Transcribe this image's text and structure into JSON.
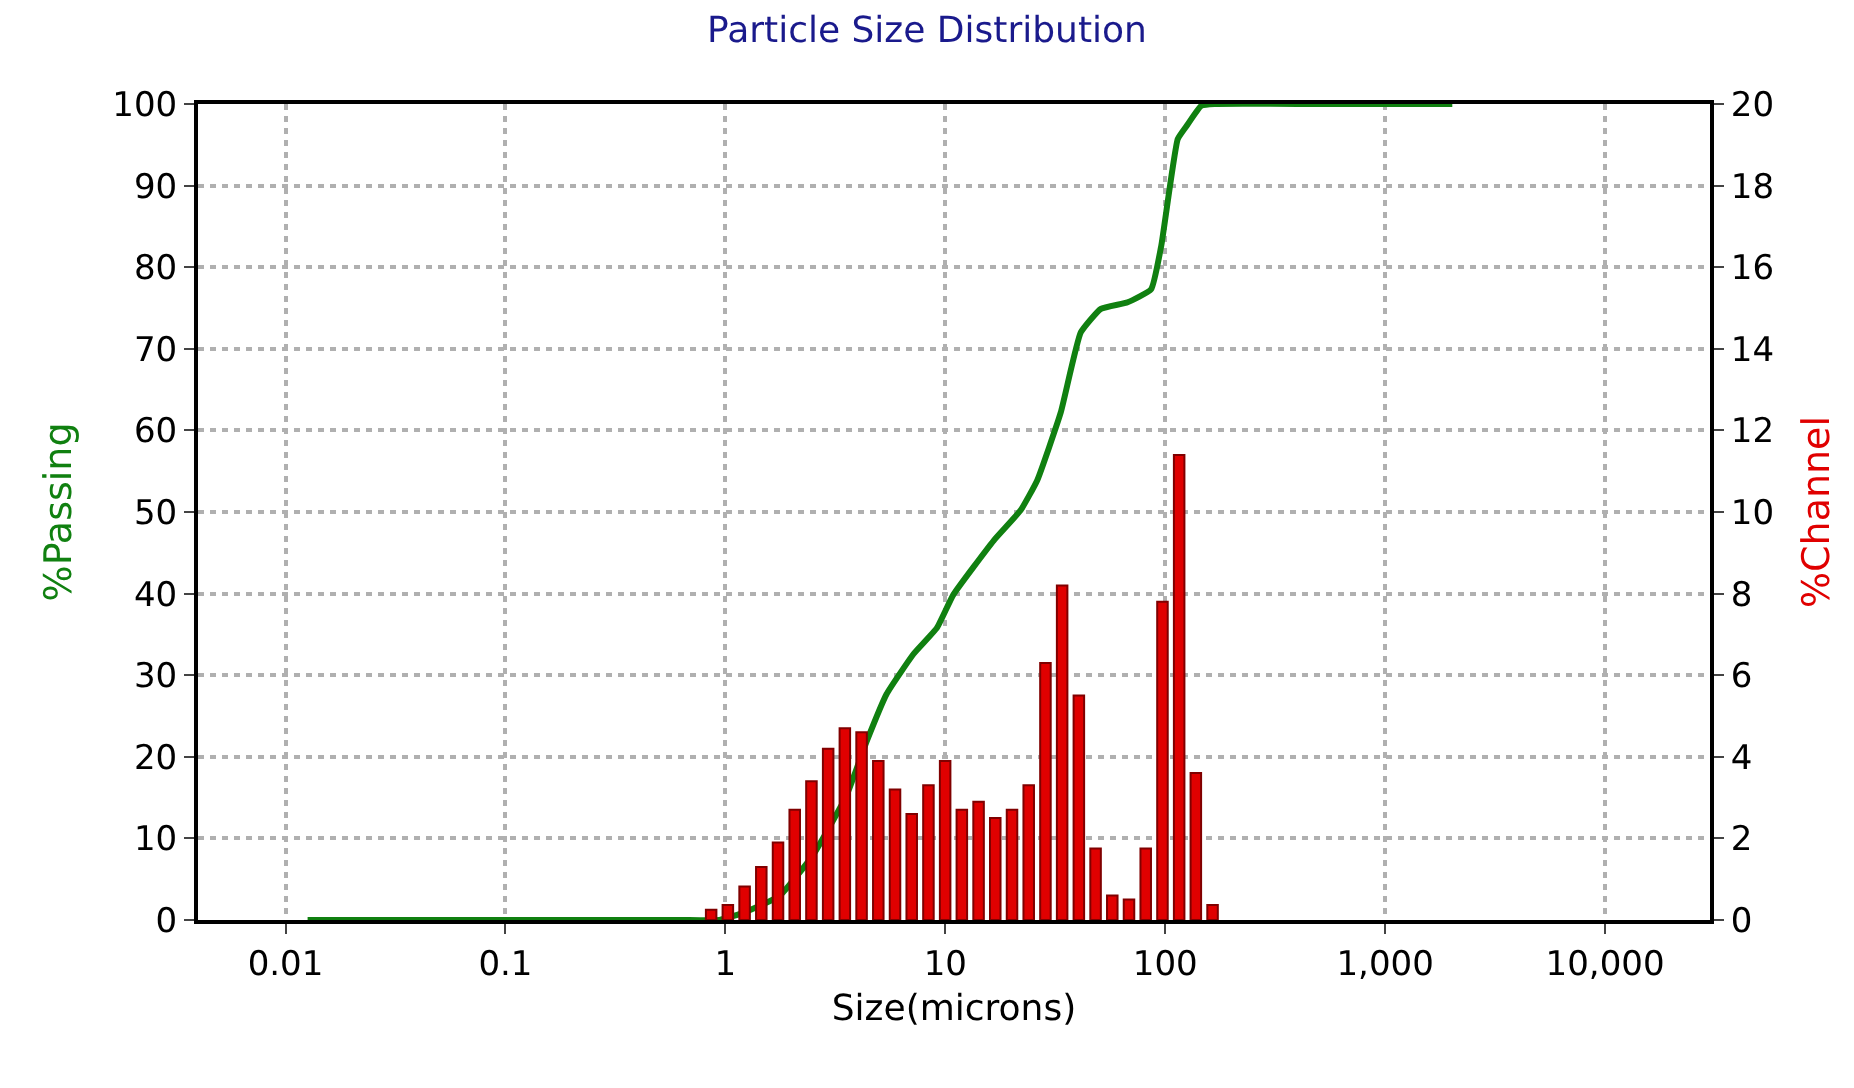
{
  "chart_data": {
    "type": "bar",
    "title": "Particle Size Distribution",
    "xlabel": "Size(microns)",
    "ylabel": "%Passing",
    "y2label": "%Channel",
    "log": "x",
    "grid": true,
    "xlim": [
      0.004,
      30000
    ],
    "xticks": [
      0.01,
      0.1,
      1,
      10,
      100,
      {
        "value": 1000,
        "label": "1,000"
      },
      {
        "value": 10000,
        "label": "10,000"
      }
    ],
    "ylim": [
      0,
      100
    ],
    "yticks": [
      0,
      10,
      20,
      30,
      40,
      50,
      60,
      70,
      80,
      90,
      100
    ],
    "y2lim": [
      0,
      20
    ],
    "y2ticks": [
      0,
      2,
      4,
      6,
      8,
      10,
      12,
      14,
      16,
      18,
      20
    ],
    "series": [
      {
        "type": "line",
        "axis": "y",
        "color": "#108010",
        "x": [
          0.0126,
          0.1,
          0.62,
          0.94,
          1.24,
          1.77,
          2.51,
          3.56,
          4.39,
          5.41,
          7.17,
          9.16,
          10.9,
          16.6,
          22.0,
          26.2,
          33.5,
          41.3,
          51.0,
          67.5,
          86.3,
          95.9,
          114,
          125,
          146,
          168,
          500,
          2020
        ],
        "values": [
          0,
          0,
          0,
          0,
          1.0,
          3.0,
          8.0,
          15.3,
          21.9,
          27.7,
          32.6,
          35.8,
          39.9,
          46.5,
          50.2,
          53.9,
          62.2,
          72.0,
          74.9,
          75.7,
          77.3,
          82.6,
          95.7,
          97.3,
          99.8,
          100,
          100,
          100
        ]
      },
      {
        "axis": "y2",
        "color": "#e00000",
        "x": [
          0.863,
          1.028,
          1.225,
          1.459,
          1.738,
          2.07,
          2.466,
          2.938,
          3.499,
          4.169,
          4.966,
          5.916,
          7.047,
          8.395,
          10.0,
          11.91,
          14.19,
          16.9,
          20.14,
          23.99,
          28.58,
          34.04,
          40.55,
          48.31,
          57.54,
          68.55,
          81.66,
          97.3,
          115.9,
          138.0,
          164.4
        ],
        "values": [
          0.25,
          0.37,
          0.82,
          1.3,
          1.9,
          2.7,
          3.4,
          4.2,
          4.7,
          4.6,
          3.9,
          3.2,
          2.6,
          3.3,
          3.9,
          2.7,
          2.9,
          2.5,
          2.7,
          3.3,
          6.3,
          8.2,
          5.5,
          1.75,
          0.6,
          0.5,
          1.75,
          7.8,
          11.4,
          3.6,
          0.37
        ]
      }
    ]
  }
}
